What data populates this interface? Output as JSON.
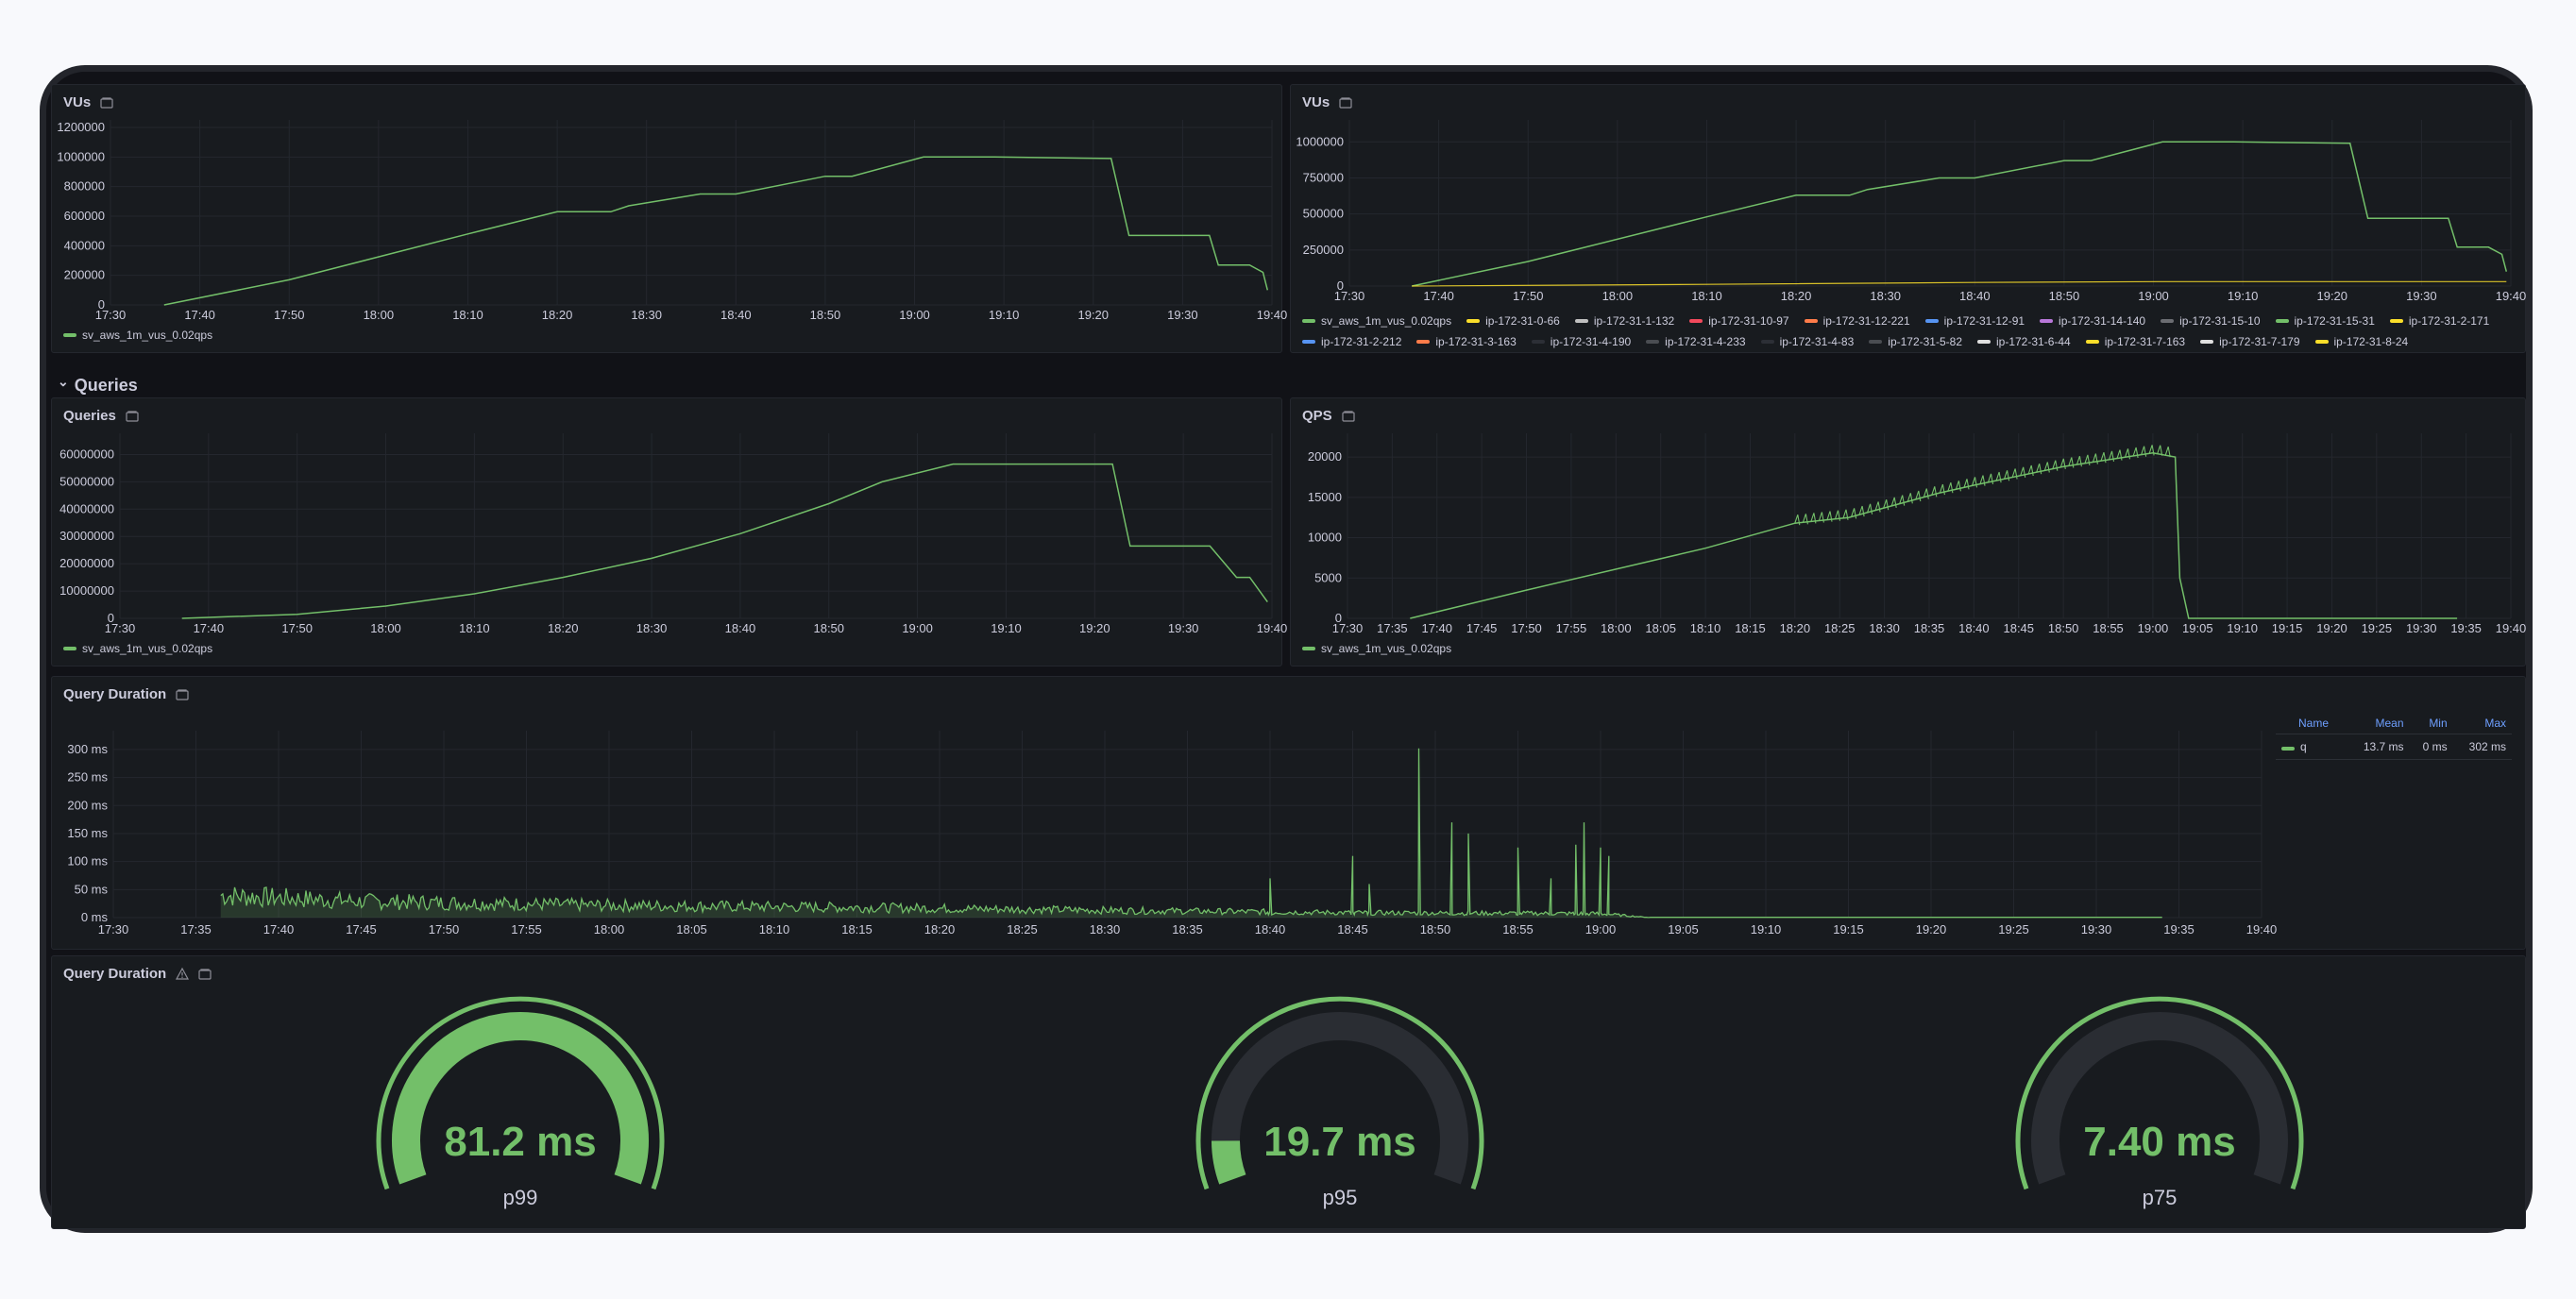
{
  "colors": {
    "accent_green": "#73bf69",
    "legend_green": "#73bf69",
    "background": "#111217",
    "panel": "#181b1f",
    "gauge_track": "#2a2d33",
    "table_header": "#6e9fff"
  },
  "icons": {
    "panel_menu": "library-panel-icon",
    "warning": "warning-icon",
    "row_chevron": "chevron-down-icon"
  },
  "row": {
    "chevron": "⌄",
    "title": "Queries"
  },
  "panels": {
    "vus_left": {
      "title": "VUs",
      "legend": [
        {
          "name": "sv_aws_1m_vus_0.02qps",
          "color": "#73bf69"
        }
      ]
    },
    "vus_right": {
      "title": "VUs",
      "legend": [
        {
          "name": "sv_aws_1m_vus_0.02qps",
          "color": "#73bf69"
        },
        {
          "name": "ip-172-31-0-66",
          "color": "#fade2a"
        },
        {
          "name": "ip-172-31-1-132",
          "color": "#c0c0c0"
        },
        {
          "name": "ip-172-31-10-97",
          "color": "#f2495c"
        },
        {
          "name": "ip-172-31-12-221",
          "color": "#ff7c4a"
        },
        {
          "name": "ip-172-31-12-91",
          "color": "#5794f2"
        },
        {
          "name": "ip-172-31-14-140",
          "color": "#b877d9"
        },
        {
          "name": "ip-172-31-15-10",
          "color": "#6b6d72"
        },
        {
          "name": "ip-172-31-15-31",
          "color": "#73bf69"
        },
        {
          "name": "ip-172-31-2-171",
          "color": "#fade2a"
        },
        {
          "name": "ip-172-31-2-212",
          "color": "#5794f2"
        },
        {
          "name": "ip-172-31-3-163",
          "color": "#ff7c4a"
        },
        {
          "name": "ip-172-31-4-190",
          "color": "#2c2f36"
        },
        {
          "name": "ip-172-31-4-233",
          "color": "#4a4d52"
        },
        {
          "name": "ip-172-31-4-83",
          "color": "#2c2f36"
        },
        {
          "name": "ip-172-31-5-82",
          "color": "#4a4d52"
        },
        {
          "name": "ip-172-31-6-44",
          "color": "#e0e0e0"
        },
        {
          "name": "ip-172-31-7-163",
          "color": "#fade2a"
        },
        {
          "name": "ip-172-31-7-179",
          "color": "#e0e0e0"
        },
        {
          "name": "ip-172-31-8-24",
          "color": "#fade2a"
        }
      ]
    },
    "queries": {
      "title": "Queries",
      "legend": [
        {
          "name": "sv_aws_1m_vus_0.02qps",
          "color": "#73bf69"
        }
      ]
    },
    "qps": {
      "title": "QPS",
      "legend": [
        {
          "name": "sv_aws_1m_vus_0.02qps",
          "color": "#73bf69"
        }
      ]
    },
    "duration": {
      "title": "Query Duration",
      "table": {
        "headers": [
          "Name",
          "Mean",
          "Min",
          "Max"
        ],
        "rows": [
          {
            "name": "q",
            "mean": "13.7 ms",
            "min": "0 ms",
            "max": "302 ms",
            "color": "#73bf69"
          }
        ]
      }
    },
    "gauges": {
      "title": "Query Duration",
      "items": [
        {
          "value": "81.2 ms",
          "label": "p99",
          "fraction": 1.0
        },
        {
          "value": "19.7 ms",
          "label": "p95",
          "fraction": 0.09
        },
        {
          "value": "7.40 ms",
          "label": "p75",
          "fraction": 0.0
        }
      ]
    }
  },
  "chart_data": [
    {
      "type": "line",
      "panel": "vus_left",
      "title": "VUs",
      "yticks": [
        "1200000",
        "1000000",
        "800000",
        "600000",
        "400000",
        "200000",
        "0"
      ],
      "ylim": [
        0,
        1200000
      ],
      "xticks": [
        "17:30",
        "17:40",
        "17:50",
        "18:00",
        "18:10",
        "18:20",
        "18:30",
        "18:40",
        "18:50",
        "19:00",
        "19:10",
        "19:20",
        "19:30",
        "19:40"
      ],
      "xlim_minutes": [
        0,
        130
      ],
      "series": [
        {
          "name": "sv_aws_1m_vus_0.02qps",
          "x": [
            6,
            20,
            40,
            50,
            56,
            58,
            66,
            70,
            80,
            83,
            91,
            99,
            112,
            114,
            123,
            124,
            127,
            127.5,
            129,
            129.5
          ],
          "y": [
            0,
            170000,
            480000,
            630000,
            630000,
            670000,
            750000,
            750000,
            870000,
            870000,
            1000000,
            1000000,
            990000,
            470000,
            470000,
            270000,
            270000,
            270000,
            220000,
            100000
          ]
        }
      ],
      "grid": true
    },
    {
      "type": "line",
      "panel": "vus_right",
      "title": "VUs",
      "yticks": [
        "1000000",
        "750000",
        "500000",
        "250000",
        "0"
      ],
      "ylim": [
        0,
        1100000
      ],
      "xticks": [
        "17:30",
        "17:40",
        "17:50",
        "18:00",
        "18:10",
        "18:20",
        "18:30",
        "18:40",
        "18:50",
        "19:00",
        "19:10",
        "19:20",
        "19:30",
        "19:40"
      ],
      "xlim_minutes": [
        0,
        130
      ],
      "series": [
        {
          "name": "sv_aws_1m_vus_0.02qps",
          "x": [
            7,
            20,
            40,
            50,
            56,
            58,
            66,
            70,
            80,
            83,
            91,
            99,
            112,
            114,
            123,
            124,
            127,
            127.5,
            129,
            129.5
          ],
          "y": [
            0,
            170000,
            480000,
            630000,
            630000,
            670000,
            750000,
            750000,
            870000,
            870000,
            1000000,
            1000000,
            990000,
            470000,
            470000,
            270000,
            270000,
            270000,
            220000,
            100000
          ]
        },
        {
          "name": "ip-172-31-0-66",
          "x": [
            7,
            40,
            70,
            91,
            112,
            129.5
          ],
          "y": [
            0,
            12000,
            25000,
            31000,
            31000,
            31000
          ]
        }
      ],
      "grid": true
    },
    {
      "type": "line",
      "panel": "queries",
      "title": "Queries",
      "yticks": [
        "60000000",
        "50000000",
        "40000000",
        "30000000",
        "20000000",
        "10000000",
        "0"
      ],
      "ylim": [
        0,
        65000000
      ],
      "xticks": [
        "17:30",
        "17:40",
        "17:50",
        "18:00",
        "18:10",
        "18:20",
        "18:30",
        "18:40",
        "18:50",
        "19:00",
        "19:10",
        "19:20",
        "19:30",
        "19:40"
      ],
      "xlim_minutes": [
        0,
        130
      ],
      "series": [
        {
          "name": "sv_aws_1m_vus_0.02qps",
          "x": [
            7,
            20,
            30,
            40,
            50,
            60,
            70,
            80,
            86,
            94,
            106,
            112,
            114,
            122,
            123,
            126,
            127.5,
            129.5
          ],
          "y": [
            0,
            1500000,
            4500000,
            9000000,
            15000000,
            22000000,
            31000000,
            42000000,
            50000000,
            56500000,
            56500000,
            56500000,
            26500000,
            26500000,
            26500000,
            15000000,
            15000000,
            6000000
          ]
        }
      ],
      "grid": true
    },
    {
      "type": "line",
      "panel": "qps",
      "title": "QPS",
      "yticks": [
        "20000",
        "15000",
        "10000",
        "5000",
        "0"
      ],
      "ylim": [
        0,
        22000
      ],
      "xticks": [
        "17:30",
        "17:35",
        "17:40",
        "17:45",
        "17:50",
        "17:55",
        "18:00",
        "18:05",
        "18:10",
        "18:15",
        "18:20",
        "18:25",
        "18:30",
        "18:35",
        "18:40",
        "18:45",
        "18:50",
        "18:55",
        "19:00",
        "19:05",
        "19:10",
        "19:15",
        "19:20",
        "19:25",
        "19:30",
        "19:35",
        "19:40"
      ],
      "xlim_minutes": [
        0,
        130
      ],
      "series": [
        {
          "name": "sv_aws_1m_vus_0.02qps",
          "x": [
            7,
            20,
            40,
            50,
            56,
            66,
            70,
            80,
            90,
            92.5,
            93,
            94,
            95,
            124
          ],
          "y": [
            0,
            3500,
            8700,
            11800,
            12500,
            15500,
            16500,
            18800,
            20500,
            20000,
            5000,
            0,
            0,
            0
          ]
        }
      ],
      "grid": true
    },
    {
      "type": "area",
      "panel": "duration",
      "title": "Query Duration",
      "yticks": [
        "300 ms",
        "250 ms",
        "200 ms",
        "150 ms",
        "100 ms",
        "50 ms",
        "0 ms"
      ],
      "ylim": [
        0,
        320
      ],
      "xticks": [
        "17:30",
        "17:35",
        "17:40",
        "17:45",
        "17:50",
        "17:55",
        "18:00",
        "18:05",
        "18:10",
        "18:15",
        "18:20",
        "18:25",
        "18:30",
        "18:35",
        "18:40",
        "18:45",
        "18:50",
        "18:55",
        "19:00",
        "19:05",
        "19:10",
        "19:15",
        "19:20",
        "19:25",
        "19:30",
        "19:35",
        "19:40"
      ],
      "xlim_minutes": [
        0,
        130
      ],
      "series": [
        {
          "name": "q",
          "envelope_x": [
            6.5,
            15,
            30,
            45,
            60,
            75,
            90,
            93,
            124
          ],
          "envelope_y": [
            55,
            40,
            30,
            25,
            18,
            12,
            10,
            0,
            0
          ],
          "peaks_x": [
            70,
            75,
            76,
            79,
            81,
            82,
            85,
            87,
            88.5,
            89,
            90,
            90.5
          ],
          "peaks_y": [
            70,
            110,
            60,
            302,
            170,
            150,
            125,
            70,
            130,
            170,
            125,
            110
          ]
        }
      ],
      "grid": true
    }
  ]
}
